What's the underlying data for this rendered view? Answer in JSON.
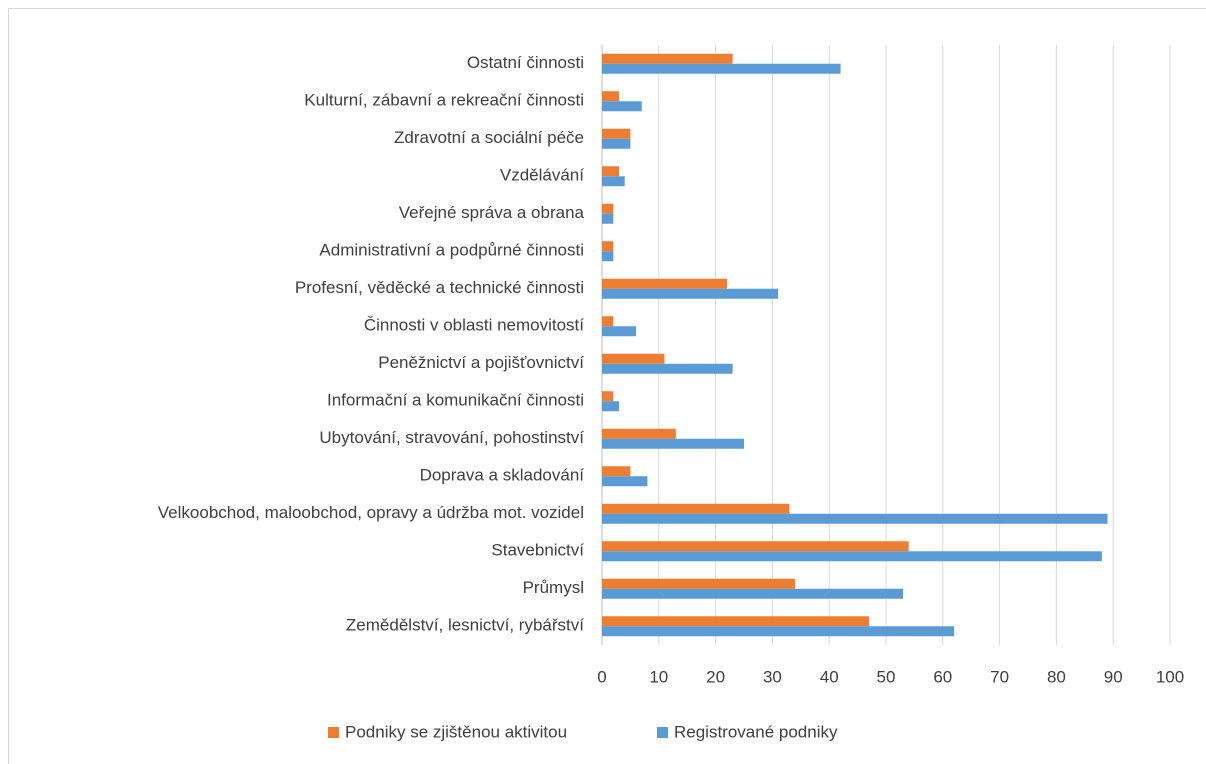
{
  "chart_data": {
    "type": "bar",
    "orientation": "horizontal",
    "categories": [
      "Ostatní činnosti",
      "Kulturní, zábavní a rekreační činnosti",
      "Zdravotní a sociální péče",
      "Vzdělávání",
      "Veřejné správa a obrana",
      "Administrativní a podpůrné činnosti",
      "Profesní, věděcké a technické činnosti",
      "Činnosti v oblasti nemovitostí",
      "Peněžnictví a pojišťovnictví",
      "Informační a komunikační činnosti",
      "Ubytování, stravování, pohostinství",
      "Doprava a skladování",
      "Velkoobchod, maloobchod, opravy a údržba mot. vozidel",
      "Stavebnictví",
      "Průmysl",
      "Zemědělství, lesnictví, rybářství"
    ],
    "series": [
      {
        "name": "Podniky se zjištěnou aktivitou",
        "color": "#ed7d31",
        "values": [
          23,
          3,
          5,
          3,
          2,
          2,
          22,
          2,
          11,
          2,
          13,
          5,
          33,
          54,
          34,
          47
        ]
      },
      {
        "name": "Registrované podniky",
        "color": "#5b9bd5",
        "values": [
          42,
          7,
          5,
          4,
          2,
          2,
          31,
          6,
          23,
          3,
          25,
          8,
          89,
          88,
          53,
          62
        ]
      }
    ],
    "xlim": [
      0,
      100
    ],
    "xticks": [
      0,
      10,
      20,
      30,
      40,
      50,
      60,
      70,
      80,
      90,
      100
    ],
    "grid": true,
    "legend": "bottom"
  }
}
